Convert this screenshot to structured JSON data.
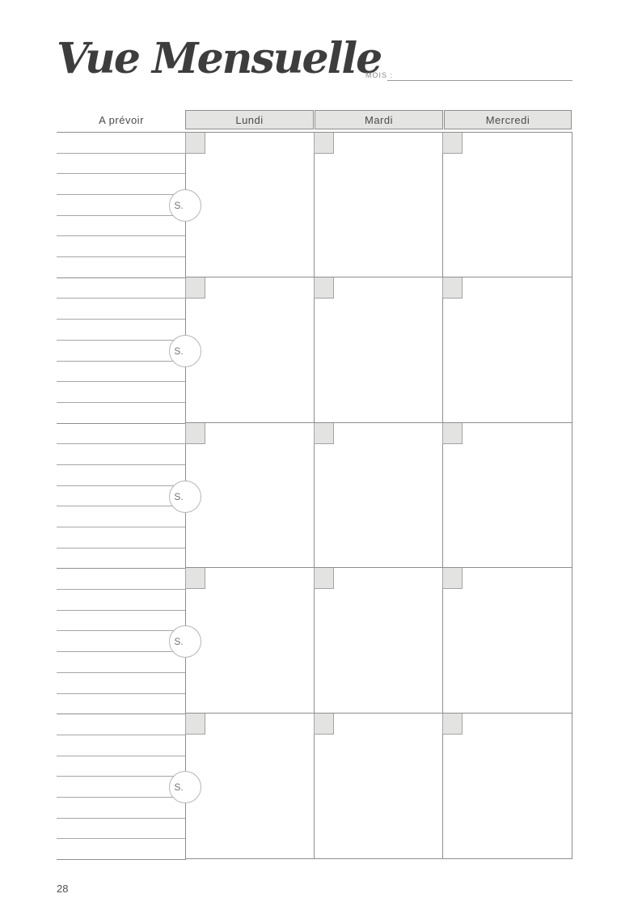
{
  "page": {
    "title": "Vue Mensuelle",
    "page_number": "28"
  },
  "mois_field": {
    "label": "MOIS :",
    "value": ""
  },
  "planner": {
    "todo_header": "A prévoir",
    "day_headers": [
      "Lundi",
      "Mardi",
      "Mercredi"
    ],
    "weeks": [
      {
        "label": "S."
      },
      {
        "label": "S."
      },
      {
        "label": "S."
      },
      {
        "label": "S."
      },
      {
        "label": "S."
      }
    ],
    "ruled_lines_per_week": 6
  },
  "colors": {
    "line_dark": "#8e8e8e",
    "line_light": "#a6a6a6",
    "header_fill": "#e4e4e2",
    "square_fill": "#e3e3e1",
    "square_border": "#a3a3a3",
    "circle_border": "#b5b5b5",
    "title_color": "#3d3d3d",
    "text_dark": "#4a4a4a",
    "text_mid": "#757575",
    "text_light": "#8a8a8a"
  }
}
